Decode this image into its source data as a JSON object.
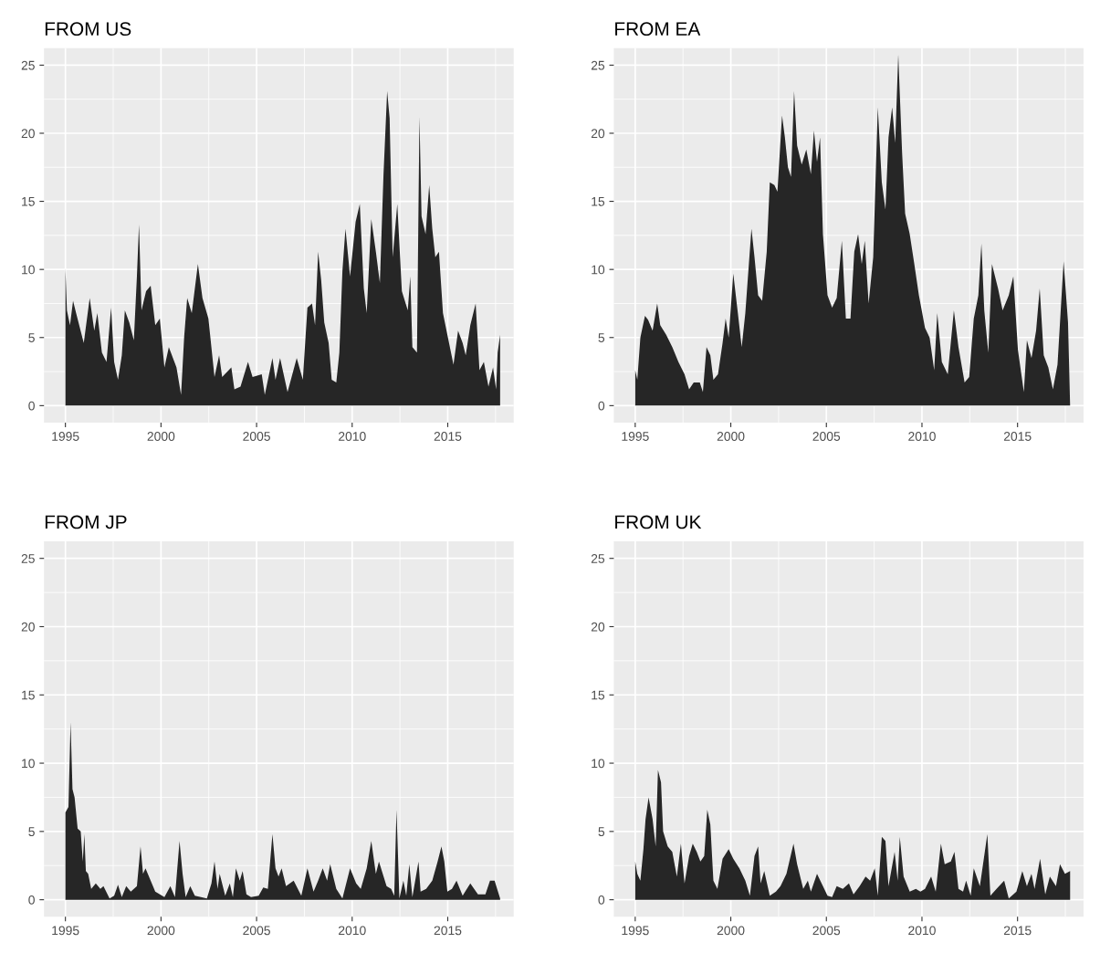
{
  "chart_data": [
    {
      "type": "area",
      "title": "FROM US",
      "color": "#262626",
      "grid": true,
      "xlim": [
        1993.88,
        2018.45
      ],
      "ylim": [
        -1.25,
        26.25
      ],
      "xticks": [
        1995,
        2000,
        2005,
        2010,
        2015
      ],
      "yticks": [
        0,
        5,
        10,
        15,
        20,
        25
      ],
      "x": [
        1995.0,
        1995.08,
        1995.24,
        1995.4,
        1995.56,
        1995.96,
        1996.27,
        1996.51,
        1996.67,
        1996.91,
        1997.15,
        1997.39,
        1997.55,
        1997.75,
        1997.95,
        1998.11,
        1998.34,
        1998.58,
        1998.74,
        1998.85,
        1998.98,
        1999.22,
        1999.46,
        1999.7,
        1999.94,
        2000.18,
        2000.41,
        2000.81,
        2001.05,
        2001.21,
        2001.37,
        2001.61,
        2001.93,
        2002.17,
        2002.48,
        2002.8,
        2003.04,
        2003.2,
        2003.68,
        2003.84,
        2004.16,
        2004.55,
        2004.79,
        2005.27,
        2005.43,
        2005.83,
        2005.99,
        2006.23,
        2006.62,
        2007.1,
        2007.42,
        2007.66,
        2007.9,
        2008.06,
        2008.22,
        2008.38,
        2008.54,
        2008.77,
        2008.93,
        2009.17,
        2009.33,
        2009.49,
        2009.65,
        2009.89,
        2010.18,
        2010.4,
        2010.61,
        2010.76,
        2011.0,
        2011.24,
        2011.45,
        2011.64,
        2011.83,
        2011.96,
        2012.12,
        2012.36,
        2012.6,
        2012.91,
        2013.04,
        2013.15,
        2013.39,
        2013.52,
        2013.63,
        2013.84,
        2014.03,
        2014.19,
        2014.35,
        2014.54,
        2014.75,
        2014.98,
        2015.3,
        2015.54,
        2015.78,
        2015.94,
        2016.18,
        2016.46,
        2016.66,
        2016.89,
        2017.13,
        2017.37,
        2017.53,
        2017.61,
        2017.74
      ],
      "values": [
        10.1,
        7.0,
        5.9,
        7.7,
        6.8,
        4.6,
        7.9,
        5.5,
        6.8,
        3.9,
        3.2,
        7.2,
        3.2,
        1.9,
        3.7,
        7.0,
        6.1,
        4.8,
        9.5,
        13.3,
        7.0,
        8.4,
        8.8,
        5.9,
        6.4,
        2.8,
        4.3,
        2.8,
        0.8,
        5.0,
        7.9,
        6.8,
        10.4,
        7.9,
        6.4,
        2.1,
        3.7,
        2.1,
        2.8,
        1.2,
        1.4,
        3.2,
        2.1,
        2.3,
        0.8,
        3.5,
        1.9,
        3.5,
        1.0,
        3.5,
        1.9,
        7.2,
        7.5,
        5.9,
        11.3,
        9.2,
        6.1,
        4.6,
        1.9,
        1.7,
        3.9,
        9.9,
        13.0,
        9.5,
        13.5,
        14.8,
        8.6,
        6.8,
        13.7,
        11.3,
        9.0,
        17.0,
        23.1,
        21.1,
        10.9,
        14.8,
        8.4,
        7.0,
        9.5,
        4.3,
        3.9,
        21.2,
        13.9,
        12.6,
        16.2,
        13.0,
        10.9,
        11.3,
        6.8,
        5.2,
        3.0,
        5.5,
        4.6,
        3.7,
        5.9,
        7.5,
        2.6,
        3.2,
        1.4,
        2.8,
        1.2,
        3.9,
        5.2
      ]
    },
    {
      "type": "area",
      "title": "FROM EA",
      "color": "#262626",
      "grid": true,
      "xlim": [
        1993.88,
        2018.45
      ],
      "ylim": [
        -1.25,
        26.25
      ],
      "xticks": [
        1995,
        2000,
        2005,
        2010,
        2015
      ],
      "yticks": [
        0,
        5,
        10,
        15,
        20,
        25
      ],
      "x": [
        1995.0,
        1995.11,
        1995.27,
        1995.51,
        1995.67,
        1995.91,
        1996.15,
        1996.31,
        1996.62,
        1996.94,
        1997.26,
        1997.58,
        1997.82,
        1998.06,
        1998.38,
        1998.54,
        1998.73,
        1998.93,
        1999.09,
        1999.33,
        1999.57,
        1999.73,
        1999.89,
        2000.13,
        2000.37,
        2000.57,
        2000.76,
        2001.08,
        2001.24,
        2001.43,
        2001.64,
        2001.88,
        2002.04,
        2002.28,
        2002.44,
        2002.68,
        2002.83,
        2002.99,
        2003.15,
        2003.31,
        2003.47,
        2003.71,
        2003.95,
        2004.19,
        2004.35,
        2004.51,
        2004.67,
        2004.82,
        2005.06,
        2005.3,
        2005.54,
        2005.81,
        2006.02,
        2006.26,
        2006.46,
        2006.66,
        2006.85,
        2007.01,
        2007.21,
        2007.45,
        2007.69,
        2007.9,
        2008.09,
        2008.25,
        2008.44,
        2008.6,
        2008.76,
        2008.96,
        2009.12,
        2009.36,
        2009.6,
        2009.84,
        2010.16,
        2010.4,
        2010.64,
        2010.8,
        2011.04,
        2011.35,
        2011.67,
        2011.91,
        2012.23,
        2012.47,
        2012.71,
        2012.95,
        2013.11,
        2013.26,
        2013.47,
        2013.66,
        2013.98,
        2014.22,
        2014.54,
        2014.78,
        2015.02,
        2015.33,
        2015.49,
        2015.73,
        2015.97,
        2016.16,
        2016.37,
        2016.61,
        2016.85,
        2017.09,
        2017.25,
        2017.41,
        2017.64,
        2017.75
      ],
      "values": [
        2.6,
        1.9,
        5.0,
        6.6,
        6.3,
        5.5,
        7.5,
        5.9,
        5.2,
        4.3,
        3.2,
        2.3,
        1.2,
        1.7,
        1.7,
        1.0,
        4.3,
        3.7,
        1.9,
        2.3,
        4.6,
        6.4,
        5.0,
        9.7,
        6.8,
        4.3,
        6.8,
        13.0,
        10.9,
        8.1,
        7.7,
        11.3,
        16.4,
        16.2,
        15.7,
        21.3,
        19.7,
        17.5,
        16.8,
        23.1,
        19.1,
        17.7,
        18.8,
        17.0,
        20.2,
        17.9,
        19.7,
        12.6,
        8.1,
        7.2,
        7.9,
        12.1,
        6.4,
        6.4,
        11.3,
        12.6,
        10.4,
        12.1,
        7.5,
        10.9,
        21.9,
        16.4,
        14.4,
        19.7,
        21.9,
        19.3,
        25.8,
        18.6,
        14.1,
        12.6,
        10.4,
        8.1,
        5.7,
        5.0,
        2.6,
        6.8,
        3.2,
        2.3,
        7.0,
        4.3,
        1.7,
        2.1,
        6.4,
        8.1,
        11.9,
        7.0,
        3.9,
        10.4,
        8.6,
        7.0,
        8.1,
        9.5,
        4.1,
        1.0,
        4.8,
        3.5,
        5.5,
        8.6,
        3.7,
        2.8,
        1.2,
        3.0,
        6.8,
        10.6,
        6.1,
        0
      ]
    },
    {
      "type": "area",
      "title": "FROM JP",
      "color": "#262626",
      "grid": true,
      "xlim": [
        1993.88,
        2018.45
      ],
      "ylim": [
        -1.25,
        26.25
      ],
      "xticks": [
        1995,
        2000,
        2005,
        2010,
        2015
      ],
      "yticks": [
        0,
        5,
        10,
        15,
        20,
        25
      ],
      "x": [
        1995.0,
        1995.16,
        1995.27,
        1995.37,
        1995.48,
        1995.64,
        1995.8,
        1995.91,
        1995.99,
        1996.07,
        1996.19,
        1996.35,
        1996.59,
        1996.83,
        1996.99,
        1997.31,
        1997.55,
        1997.75,
        1997.95,
        1998.18,
        1998.42,
        1998.74,
        1998.93,
        1999.06,
        1999.19,
        1999.46,
        1999.7,
        2000.18,
        2000.49,
        2000.73,
        2000.97,
        2001.13,
        2001.29,
        2001.53,
        2001.77,
        2002.09,
        2002.4,
        2002.64,
        2002.8,
        2002.96,
        2003.07,
        2003.36,
        2003.6,
        2003.76,
        2003.92,
        2004.12,
        2004.27,
        2004.47,
        2004.71,
        2005.11,
        2005.35,
        2005.59,
        2005.83,
        2005.99,
        2006.15,
        2006.31,
        2006.54,
        2006.94,
        2007.34,
        2007.66,
        2007.98,
        2008.22,
        2008.46,
        2008.69,
        2008.85,
        2009.17,
        2009.49,
        2009.89,
        2010.21,
        2010.45,
        2010.76,
        2011.0,
        2011.24,
        2011.4,
        2011.8,
        2012.04,
        2012.2,
        2012.32,
        2012.47,
        2012.68,
        2012.83,
        2012.99,
        2013.15,
        2013.47,
        2013.58,
        2013.87,
        2014.19,
        2014.47,
        2014.67,
        2014.82,
        2014.98,
        2015.22,
        2015.46,
        2015.78,
        2016.18,
        2016.58,
        2016.97,
        2017.21,
        2017.45,
        2017.74
      ],
      "values": [
        6.4,
        6.8,
        13.0,
        8.1,
        7.5,
        5.2,
        5.0,
        2.8,
        4.8,
        2.1,
        1.9,
        0.8,
        1.2,
        0.8,
        1.0,
        0.1,
        0.3,
        1.1,
        0.2,
        1.0,
        0.6,
        1.0,
        3.9,
        1.9,
        2.3,
        1.4,
        0.6,
        0.2,
        1.0,
        0.2,
        4.3,
        1.9,
        0.2,
        1.0,
        0.3,
        0.2,
        0.1,
        1.2,
        2.8,
        0.8,
        1.9,
        0.3,
        1.2,
        0.2,
        2.3,
        1.4,
        2.1,
        0.4,
        0.2,
        0.3,
        0.9,
        0.8,
        4.8,
        2.3,
        1.7,
        2.3,
        1.0,
        1.4,
        0.3,
        2.3,
        0.6,
        1.4,
        2.3,
        1.4,
        2.6,
        0.8,
        0.1,
        2.3,
        1.2,
        0.8,
        2.3,
        4.3,
        1.9,
        2.8,
        1.0,
        0.8,
        0.3,
        6.6,
        0.1,
        1.4,
        0.3,
        2.6,
        0.2,
        2.8,
        0.6,
        0.8,
        1.4,
        2.8,
        3.9,
        2.8,
        0.6,
        0.8,
        1.4,
        0.3,
        1.2,
        0.4,
        0.4,
        1.4,
        1.4,
        0.1
      ]
    },
    {
      "type": "area",
      "title": "FROM UK",
      "color": "#262626",
      "grid": true,
      "xlim": [
        1993.88,
        2018.45
      ],
      "ylim": [
        -1.25,
        26.25
      ],
      "xticks": [
        1995,
        2000,
        2005,
        2010,
        2015
      ],
      "yticks": [
        0,
        5,
        10,
        15,
        20,
        25
      ],
      "x": [
        1995.0,
        1995.11,
        1995.27,
        1995.43,
        1995.54,
        1995.7,
        1995.91,
        1996.07,
        1996.19,
        1996.35,
        1996.46,
        1996.7,
        1996.94,
        1997.18,
        1997.39,
        1997.58,
        1997.82,
        1998.01,
        1998.22,
        1998.41,
        1998.61,
        1998.77,
        1998.93,
        1999.09,
        1999.3,
        1999.57,
        1999.89,
        2000.13,
        2000.45,
        2000.76,
        2001.0,
        2001.24,
        2001.43,
        2001.56,
        2001.75,
        2002.04,
        2002.36,
        2002.6,
        2002.91,
        2003.28,
        2003.47,
        2003.79,
        2004.03,
        2004.19,
        2004.51,
        2004.82,
        2005.06,
        2005.3,
        2005.54,
        2005.86,
        2006.18,
        2006.42,
        2006.74,
        2007.05,
        2007.29,
        2007.53,
        2007.69,
        2007.9,
        2008.09,
        2008.25,
        2008.57,
        2008.73,
        2008.84,
        2009.04,
        2009.36,
        2009.68,
        2009.92,
        2010.16,
        2010.48,
        2010.72,
        2010.99,
        2011.19,
        2011.51,
        2011.7,
        2011.91,
        2012.15,
        2012.31,
        2012.55,
        2012.71,
        2013.03,
        2013.42,
        2013.58,
        2013.9,
        2014.3,
        2014.54,
        2014.94,
        2015.25,
        2015.49,
        2015.73,
        2015.89,
        2016.18,
        2016.45,
        2016.69,
        2017.01,
        2017.22,
        2017.48,
        2017.75
      ],
      "values": [
        2.8,
        1.9,
        1.4,
        3.7,
        5.9,
        7.5,
        5.9,
        3.9,
        9.5,
        8.6,
        5.0,
        3.9,
        3.5,
        1.7,
        4.1,
        1.2,
        3.2,
        4.1,
        3.5,
        2.8,
        3.2,
        6.6,
        5.5,
        1.4,
        0.8,
        3.0,
        3.7,
        3.0,
        2.3,
        1.4,
        0.3,
        3.2,
        3.9,
        1.2,
        2.1,
        0.3,
        0.6,
        1.0,
        1.9,
        4.1,
        2.6,
        0.8,
        1.4,
        0.6,
        1.9,
        1.0,
        0.3,
        0.2,
        1.0,
        0.8,
        1.2,
        0.4,
        1.0,
        1.7,
        1.4,
        2.3,
        0.3,
        4.6,
        4.3,
        1.0,
        3.5,
        1.4,
        4.6,
        1.7,
        0.6,
        0.8,
        0.6,
        0.8,
        1.7,
        0.6,
        4.1,
        2.6,
        2.8,
        3.5,
        0.8,
        0.6,
        1.4,
        0.3,
        2.3,
        1.0,
        4.8,
        0.3,
        0.8,
        1.4,
        0.1,
        0.6,
        2.1,
        1.0,
        1.9,
        0.8,
        3.0,
        0.4,
        1.7,
        1.0,
        2.6,
        1.9,
        2.1
      ]
    }
  ]
}
